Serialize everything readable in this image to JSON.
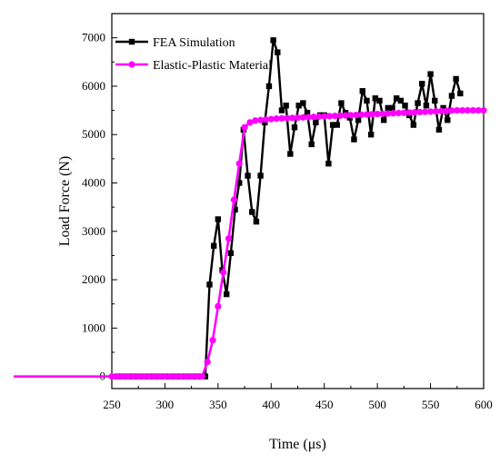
{
  "chart_data": {
    "type": "line",
    "xlabel": "Time (μs)",
    "ylabel": "Load Force (N)",
    "xlim": [
      250,
      600
    ],
    "ylim": [
      -250,
      7500
    ],
    "x_ticks": [
      250,
      300,
      350,
      400,
      450,
      500,
      550,
      600
    ],
    "y_ticks": [
      0,
      1000,
      2000,
      3000,
      4000,
      5000,
      6000,
      7000
    ],
    "legend_position": "top-left",
    "grid": false,
    "series": [
      {
        "name": "FEA Simulation",
        "color": "#000000",
        "marker": "square",
        "x": [
          255,
          260,
          265,
          270,
          275,
          280,
          285,
          290,
          295,
          300,
          305,
          310,
          315,
          320,
          325,
          330,
          335,
          338,
          342,
          346,
          350,
          354,
          358,
          362,
          366,
          370,
          374,
          378,
          382,
          386,
          390,
          394,
          398,
          402,
          406,
          410,
          414,
          418,
          422,
          426,
          430,
          434,
          438,
          442,
          446,
          450,
          454,
          458,
          462,
          466,
          470,
          474,
          478,
          482,
          486,
          490,
          494,
          498,
          502,
          506,
          510,
          514,
          518,
          522,
          526,
          530,
          534,
          538,
          542,
          546,
          550,
          554,
          558,
          562,
          566,
          570,
          574,
          578
        ],
        "y": [
          0,
          0,
          0,
          0,
          0,
          0,
          0,
          0,
          0,
          0,
          0,
          0,
          0,
          0,
          0,
          0,
          0,
          0,
          1900,
          2700,
          3250,
          2200,
          1700,
          2550,
          3450,
          4000,
          5100,
          4150,
          3400,
          3200,
          4150,
          5250,
          6000,
          6950,
          6700,
          5500,
          5600,
          4600,
          5150,
          5600,
          5650,
          5450,
          4800,
          5250,
          5400,
          5400,
          4400,
          5200,
          5200,
          5650,
          5450,
          5350,
          4900,
          5300,
          5900,
          5700,
          5000,
          5750,
          5700,
          5300,
          5550,
          5550,
          5750,
          5700,
          5600,
          5400,
          5200,
          5650,
          6050,
          5600,
          6250,
          5700,
          5100,
          5550,
          5300,
          5800,
          6150,
          5850
        ]
      },
      {
        "name": "Elastic-Plastic Material",
        "color": "#ff00ff",
        "marker": "circle",
        "x": [
          245,
          250,
          255,
          260,
          265,
          270,
          275,
          280,
          285,
          290,
          295,
          300,
          305,
          310,
          315,
          320,
          325,
          330,
          335,
          340,
          345,
          350,
          355,
          360,
          365,
          370,
          375,
          380,
          385,
          390,
          395,
          400,
          405,
          410,
          415,
          420,
          425,
          430,
          435,
          440,
          445,
          450,
          455,
          460,
          465,
          470,
          475,
          480,
          485,
          490,
          495,
          500,
          505,
          510,
          515,
          520,
          525,
          530,
          535,
          540,
          545,
          550,
          555,
          560,
          565,
          570,
          575,
          580,
          585,
          590,
          595,
          600
        ],
        "y": [
          0,
          0,
          0,
          0,
          0,
          0,
          0,
          0,
          0,
          0,
          0,
          0,
          0,
          0,
          0,
          0,
          0,
          0,
          0,
          300,
          750,
          1450,
          2150,
          2850,
          3650,
          4400,
          5150,
          5250,
          5290,
          5300,
          5310,
          5320,
          5330,
          5335,
          5340,
          5345,
          5350,
          5355,
          5360,
          5365,
          5370,
          5375,
          5380,
          5385,
          5390,
          5395,
          5400,
          5405,
          5410,
          5415,
          5420,
          5425,
          5430,
          5435,
          5440,
          5445,
          5450,
          5455,
          5460,
          5465,
          5470,
          5475,
          5480,
          5485,
          5490,
          5495,
          5500,
          5500,
          5500,
          5500,
          5500,
          5500
        ]
      }
    ]
  }
}
